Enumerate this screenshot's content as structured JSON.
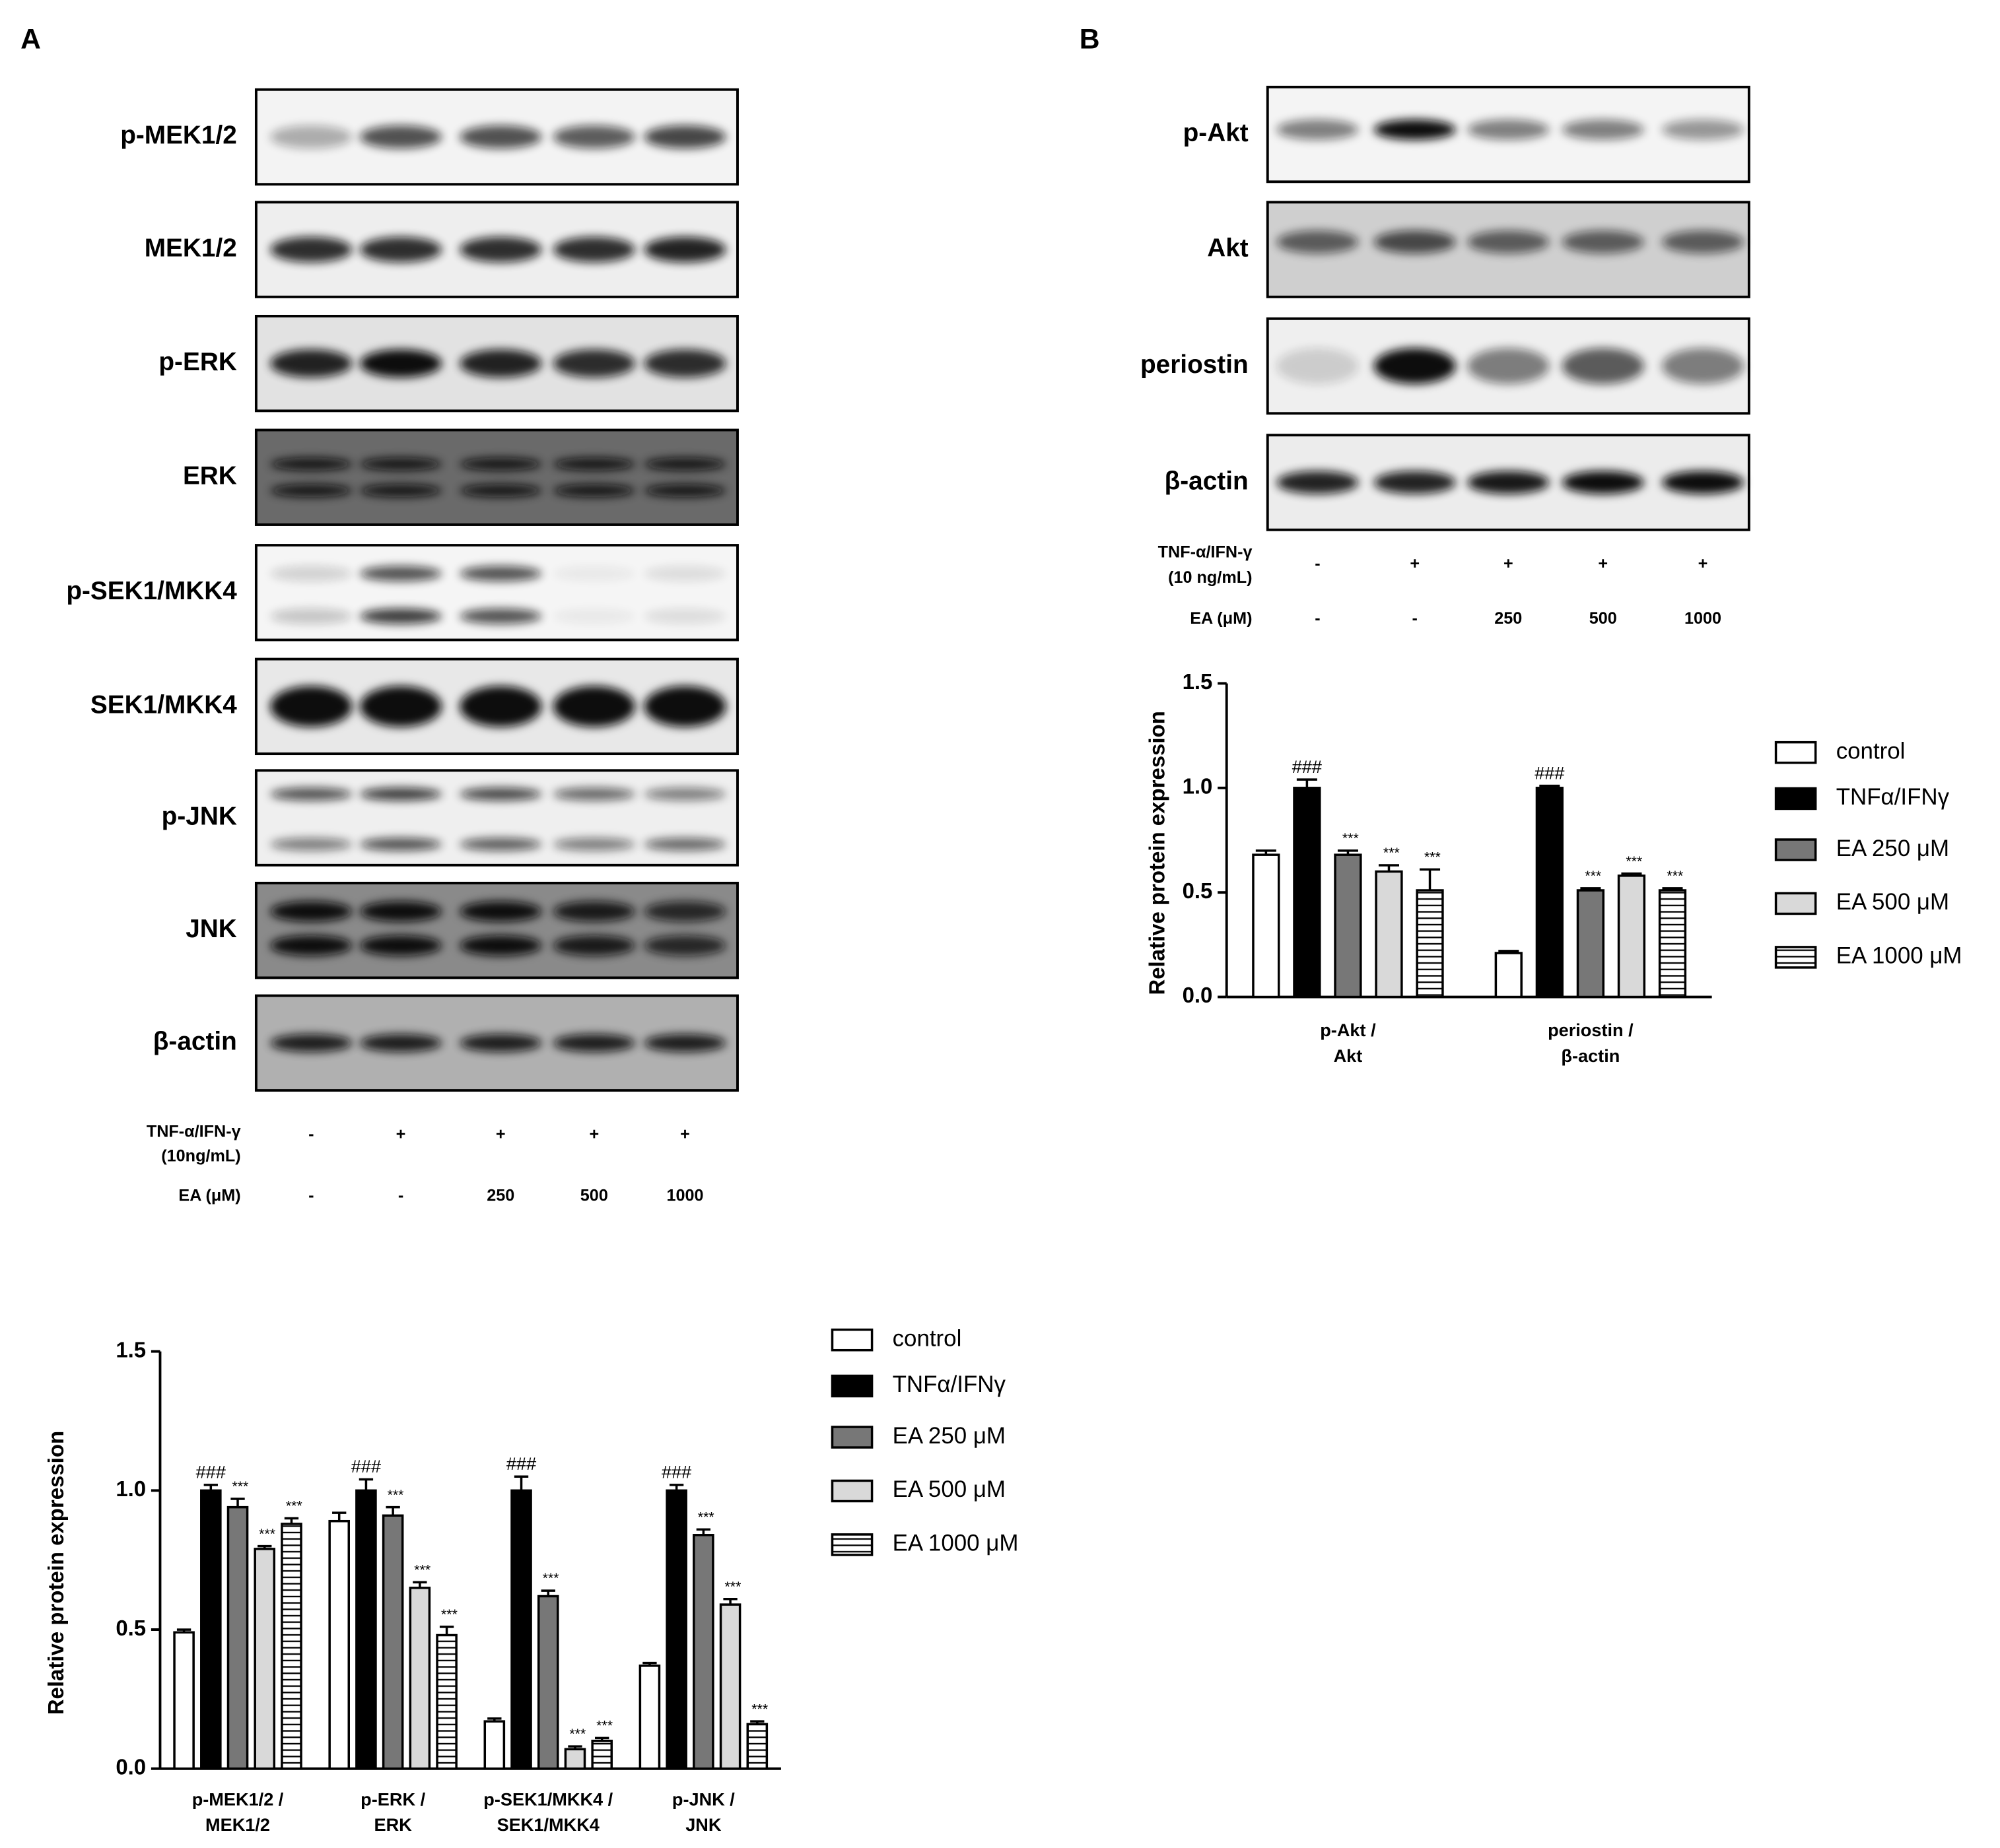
{
  "panel_a": {
    "label": "A",
    "blots": [
      "p-MEK1/2",
      "MEK1/2",
      "p-ERK",
      "ERK",
      "p-SEK1/MKK4",
      "SEK1/MKK4",
      "p-JNK",
      "JNK",
      "β-actin"
    ],
    "treatments": [
      {
        "name": [
          "TNF-α/IFN-γ",
          "(10ng/mL)"
        ],
        "lanes": [
          "-",
          "+",
          "+",
          "+",
          "+"
        ]
      },
      {
        "name": [
          "EA (μM)"
        ],
        "lanes": [
          "-",
          "-",
          "250",
          "500",
          "1000"
        ]
      }
    ]
  },
  "panel_b": {
    "label": "B",
    "blots": [
      "p-Akt",
      "Akt",
      "periostin",
      "β-actin"
    ],
    "treatments": [
      {
        "name": [
          "TNF-α/IFN-γ",
          "(10 ng/mL)"
        ],
        "lanes": [
          "-",
          "+",
          "+",
          "+",
          "+"
        ]
      },
      {
        "name": [
          "EA (μM)"
        ],
        "lanes": [
          "-",
          "-",
          "250",
          "500",
          "1000"
        ]
      }
    ]
  },
  "chart_data": [
    {
      "type": "bar",
      "ylabel": "Relative protein expression",
      "categories": [
        [
          "p-MEK1/2 /",
          "MEK1/2"
        ],
        [
          "p-ERK /",
          "ERK"
        ],
        [
          "p-SEK1/MKK4 /",
          "SEK1/MKK4"
        ],
        [
          "p-JNK /",
          "JNK"
        ]
      ],
      "ylim": [
        0,
        1.5
      ],
      "yticks": [
        {
          "value": 0,
          "label": "0.0"
        },
        {
          "value": 0.5,
          "label": "0.5"
        },
        {
          "value": 1,
          "label": "1.0"
        },
        {
          "value": 1.5,
          "label": "1.5"
        }
      ],
      "series": [
        {
          "name": "control",
          "color": "#ffffff",
          "values": [
            0.49,
            0.89,
            0.17,
            0.37
          ],
          "errors": [
            0.01,
            0.03,
            0.01,
            0.01
          ]
        },
        {
          "name": "TNFα/IFNγ",
          "color": "#000000",
          "values": [
            1.0,
            1.0,
            1.0,
            1.0
          ],
          "errors": [
            0.02,
            0.04,
            0.05,
            0.02
          ],
          "annotations": [
            "###",
            "###",
            "###",
            "###"
          ]
        },
        {
          "name": "EA 250 μM",
          "color": "#777777",
          "values": [
            0.94,
            0.91,
            0.62,
            0.84
          ],
          "errors": [
            0.03,
            0.03,
            0.02,
            0.02
          ],
          "annotations": [
            "***",
            "***",
            "***",
            "***"
          ]
        },
        {
          "name": "EA 500 μM",
          "color": "#d9d9d9",
          "values": [
            0.79,
            0.65,
            0.07,
            0.59
          ],
          "errors": [
            0.01,
            0.02,
            0.01,
            0.02
          ],
          "annotations": [
            "***",
            "***",
            "***",
            "***"
          ]
        },
        {
          "name": "EA 1000 μM",
          "color": "#ffffff",
          "pattern": "horizontal-hatch",
          "values": [
            0.88,
            0.48,
            0.1,
            0.16
          ],
          "errors": [
            0.02,
            0.03,
            0.01,
            0.01
          ],
          "annotations": [
            "***",
            "***",
            "***",
            "***"
          ]
        }
      ]
    },
    {
      "type": "bar",
      "ylabel": "Relative protein expression",
      "categories": [
        [
          "p-Akt /",
          "Akt"
        ],
        [
          "periostin /",
          "β-actin"
        ]
      ],
      "ylim": [
        0,
        1.5
      ],
      "yticks": [
        {
          "value": 0,
          "label": "0.0"
        },
        {
          "value": 0.5,
          "label": "0.5"
        },
        {
          "value": 1,
          "label": "1.0"
        },
        {
          "value": 1.5,
          "label": "1.5"
        }
      ],
      "series": [
        {
          "name": "control",
          "color": "#ffffff",
          "values": [
            0.68,
            0.21
          ],
          "errors": [
            0.02,
            0.01
          ]
        },
        {
          "name": "TNFα/IFNγ",
          "color": "#000000",
          "values": [
            1.0,
            1.0
          ],
          "errors": [
            0.04,
            0.01
          ],
          "annotations": [
            "###",
            "###"
          ]
        },
        {
          "name": "EA 250 μM",
          "color": "#777777",
          "values": [
            0.68,
            0.51
          ],
          "errors": [
            0.02,
            0.01
          ],
          "annotations": [
            "***",
            "***"
          ]
        },
        {
          "name": "EA 500 μM",
          "color": "#d9d9d9",
          "values": [
            0.6,
            0.58
          ],
          "errors": [
            0.03,
            0.01
          ],
          "annotations": [
            "***",
            "***"
          ]
        },
        {
          "name": "EA 1000 μM",
          "color": "#ffffff",
          "pattern": "horizontal-hatch",
          "values": [
            0.51,
            0.51
          ],
          "errors": [
            0.1,
            0.01
          ],
          "annotations": [
            "***",
            "***"
          ]
        }
      ]
    }
  ]
}
